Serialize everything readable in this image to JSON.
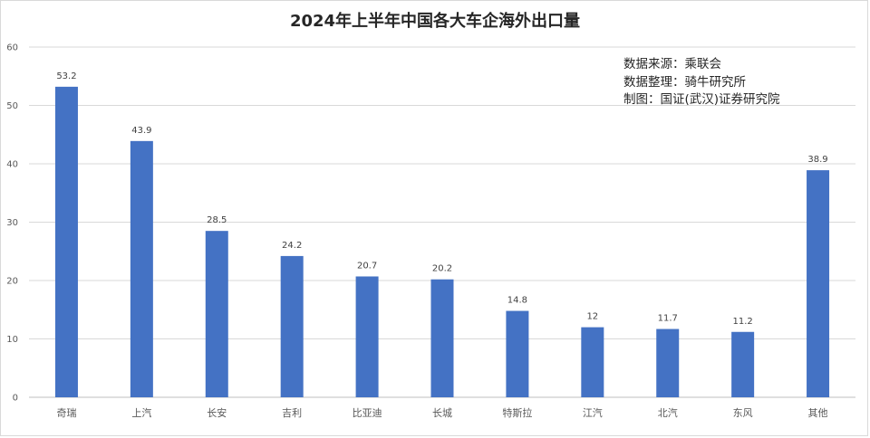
{
  "chart_data": {
    "type": "bar",
    "title": "2024年上半年中国各大车企海外出口量",
    "categories": [
      "奇瑞",
      "上汽",
      "长安",
      "吉利",
      "比亚迪",
      "长城",
      "特斯拉",
      "江汽",
      "北汽",
      "东风",
      "其他"
    ],
    "values": [
      53.2,
      43.9,
      28.5,
      24.2,
      20.7,
      20.2,
      14.8,
      12,
      11.7,
      11.2,
      38.9
    ],
    "data_labels": [
      "53.2",
      "43.9",
      "28.5",
      "24.2",
      "20.7",
      "20.2",
      "14.8",
      "12",
      "11.7",
      "11.2",
      "38.9"
    ],
    "ylim": [
      0,
      60
    ],
    "yticks": [
      0,
      10,
      20,
      30,
      40,
      50,
      60
    ],
    "xlabel": "",
    "ylabel": "",
    "grid": true,
    "legend": "none",
    "bar_color": "#4472c4",
    "grid_color": "#d9d9d9",
    "annotations": [
      "数据来源：乘联会",
      "数据整理：骑牛研究所",
      "制图：国证(武汉)证券研究院"
    ]
  }
}
